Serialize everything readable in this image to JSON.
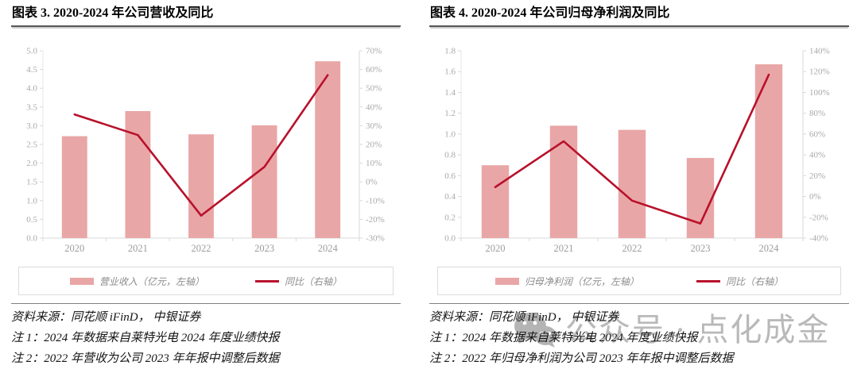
{
  "watermark": {
    "text": "公众号 · 点化成金",
    "icon": "wechat-icon"
  },
  "colors": {
    "bar": "#e9a6a6",
    "line": "#b8112b",
    "axis_line": "#d9d9d9",
    "left_axis_line": "#e7e7e7",
    "axis_text": "#a9a9a9",
    "year_text": "#9c9c9c",
    "legend_text": "#8b8b8b",
    "watermark_gray": "#b9b9b9"
  },
  "chart_data": [
    {
      "type": "bar+line",
      "title": "图表 3. 2020-2024 年公司营收及同比",
      "categories": [
        "2020",
        "2021",
        "2022",
        "2023",
        "2024"
      ],
      "series": [
        {
          "name": "营业收入（亿元，左轴）",
          "type": "bar",
          "axis": "left",
          "values": [
            2.72,
            3.39,
            2.77,
            3.01,
            4.72
          ]
        },
        {
          "name": "同比（右轴）",
          "type": "line",
          "axis": "right",
          "values": [
            36,
            25,
            -18,
            8,
            57
          ]
        }
      ],
      "left_axis": {
        "min": 0,
        "max": 5,
        "ticks": [
          "0.0",
          "0.5",
          "1.0",
          "1.5",
          "2.0",
          "2.5",
          "3.0",
          "3.5",
          "4.0",
          "4.5",
          "5.0"
        ]
      },
      "right_axis": {
        "min": -30,
        "max": 70,
        "ticks": [
          "-30%",
          "-20%",
          "-10%",
          "0%",
          "10%",
          "20%",
          "30%",
          "40%",
          "50%",
          "60%",
          "70%"
        ]
      },
      "grid": false,
      "legend_position": "bottom",
      "source": "资料来源：同花顺 iFinD， 中银证券",
      "notes": [
        "注 1：2024 年数据来自莱特光电 2024 年度业绩快报",
        "注 2：2022 年营收为公司 2023 年年报中调整后数据"
      ]
    },
    {
      "type": "bar+line",
      "title": "图表 4. 2020-2024 年公司归母净利润及同比",
      "categories": [
        "2020",
        "2021",
        "2022",
        "2023",
        "2024"
      ],
      "series": [
        {
          "name": "归母净利润（亿元，左轴）",
          "type": "bar",
          "axis": "left",
          "values": [
            0.7,
            1.08,
            1.04,
            0.77,
            1.67
          ]
        },
        {
          "name": "同比（右轴）",
          "type": "line",
          "axis": "right",
          "values": [
            9,
            53,
            -4,
            -26,
            117
          ]
        }
      ],
      "left_axis": {
        "min": 0,
        "max": 1.8,
        "ticks": [
          "0.0",
          "0.2",
          "0.4",
          "0.6",
          "0.8",
          "1.0",
          "1.2",
          "1.4",
          "1.6",
          "1.8"
        ]
      },
      "right_axis": {
        "min": -40,
        "max": 140,
        "ticks": [
          "-40%",
          "-20%",
          "0%",
          "20%",
          "40%",
          "60%",
          "80%",
          "100%",
          "120%",
          "140%"
        ]
      },
      "grid": false,
      "legend_position": "bottom",
      "source": "资料来源：同花顺 iFinD， 中银证券",
      "notes": [
        "注 1：2024 年数据来自莱特光电 2024 年度业绩快报",
        "注 2：2022 年归母净利润为公司 2023 年年报中调整后数据"
      ]
    }
  ]
}
